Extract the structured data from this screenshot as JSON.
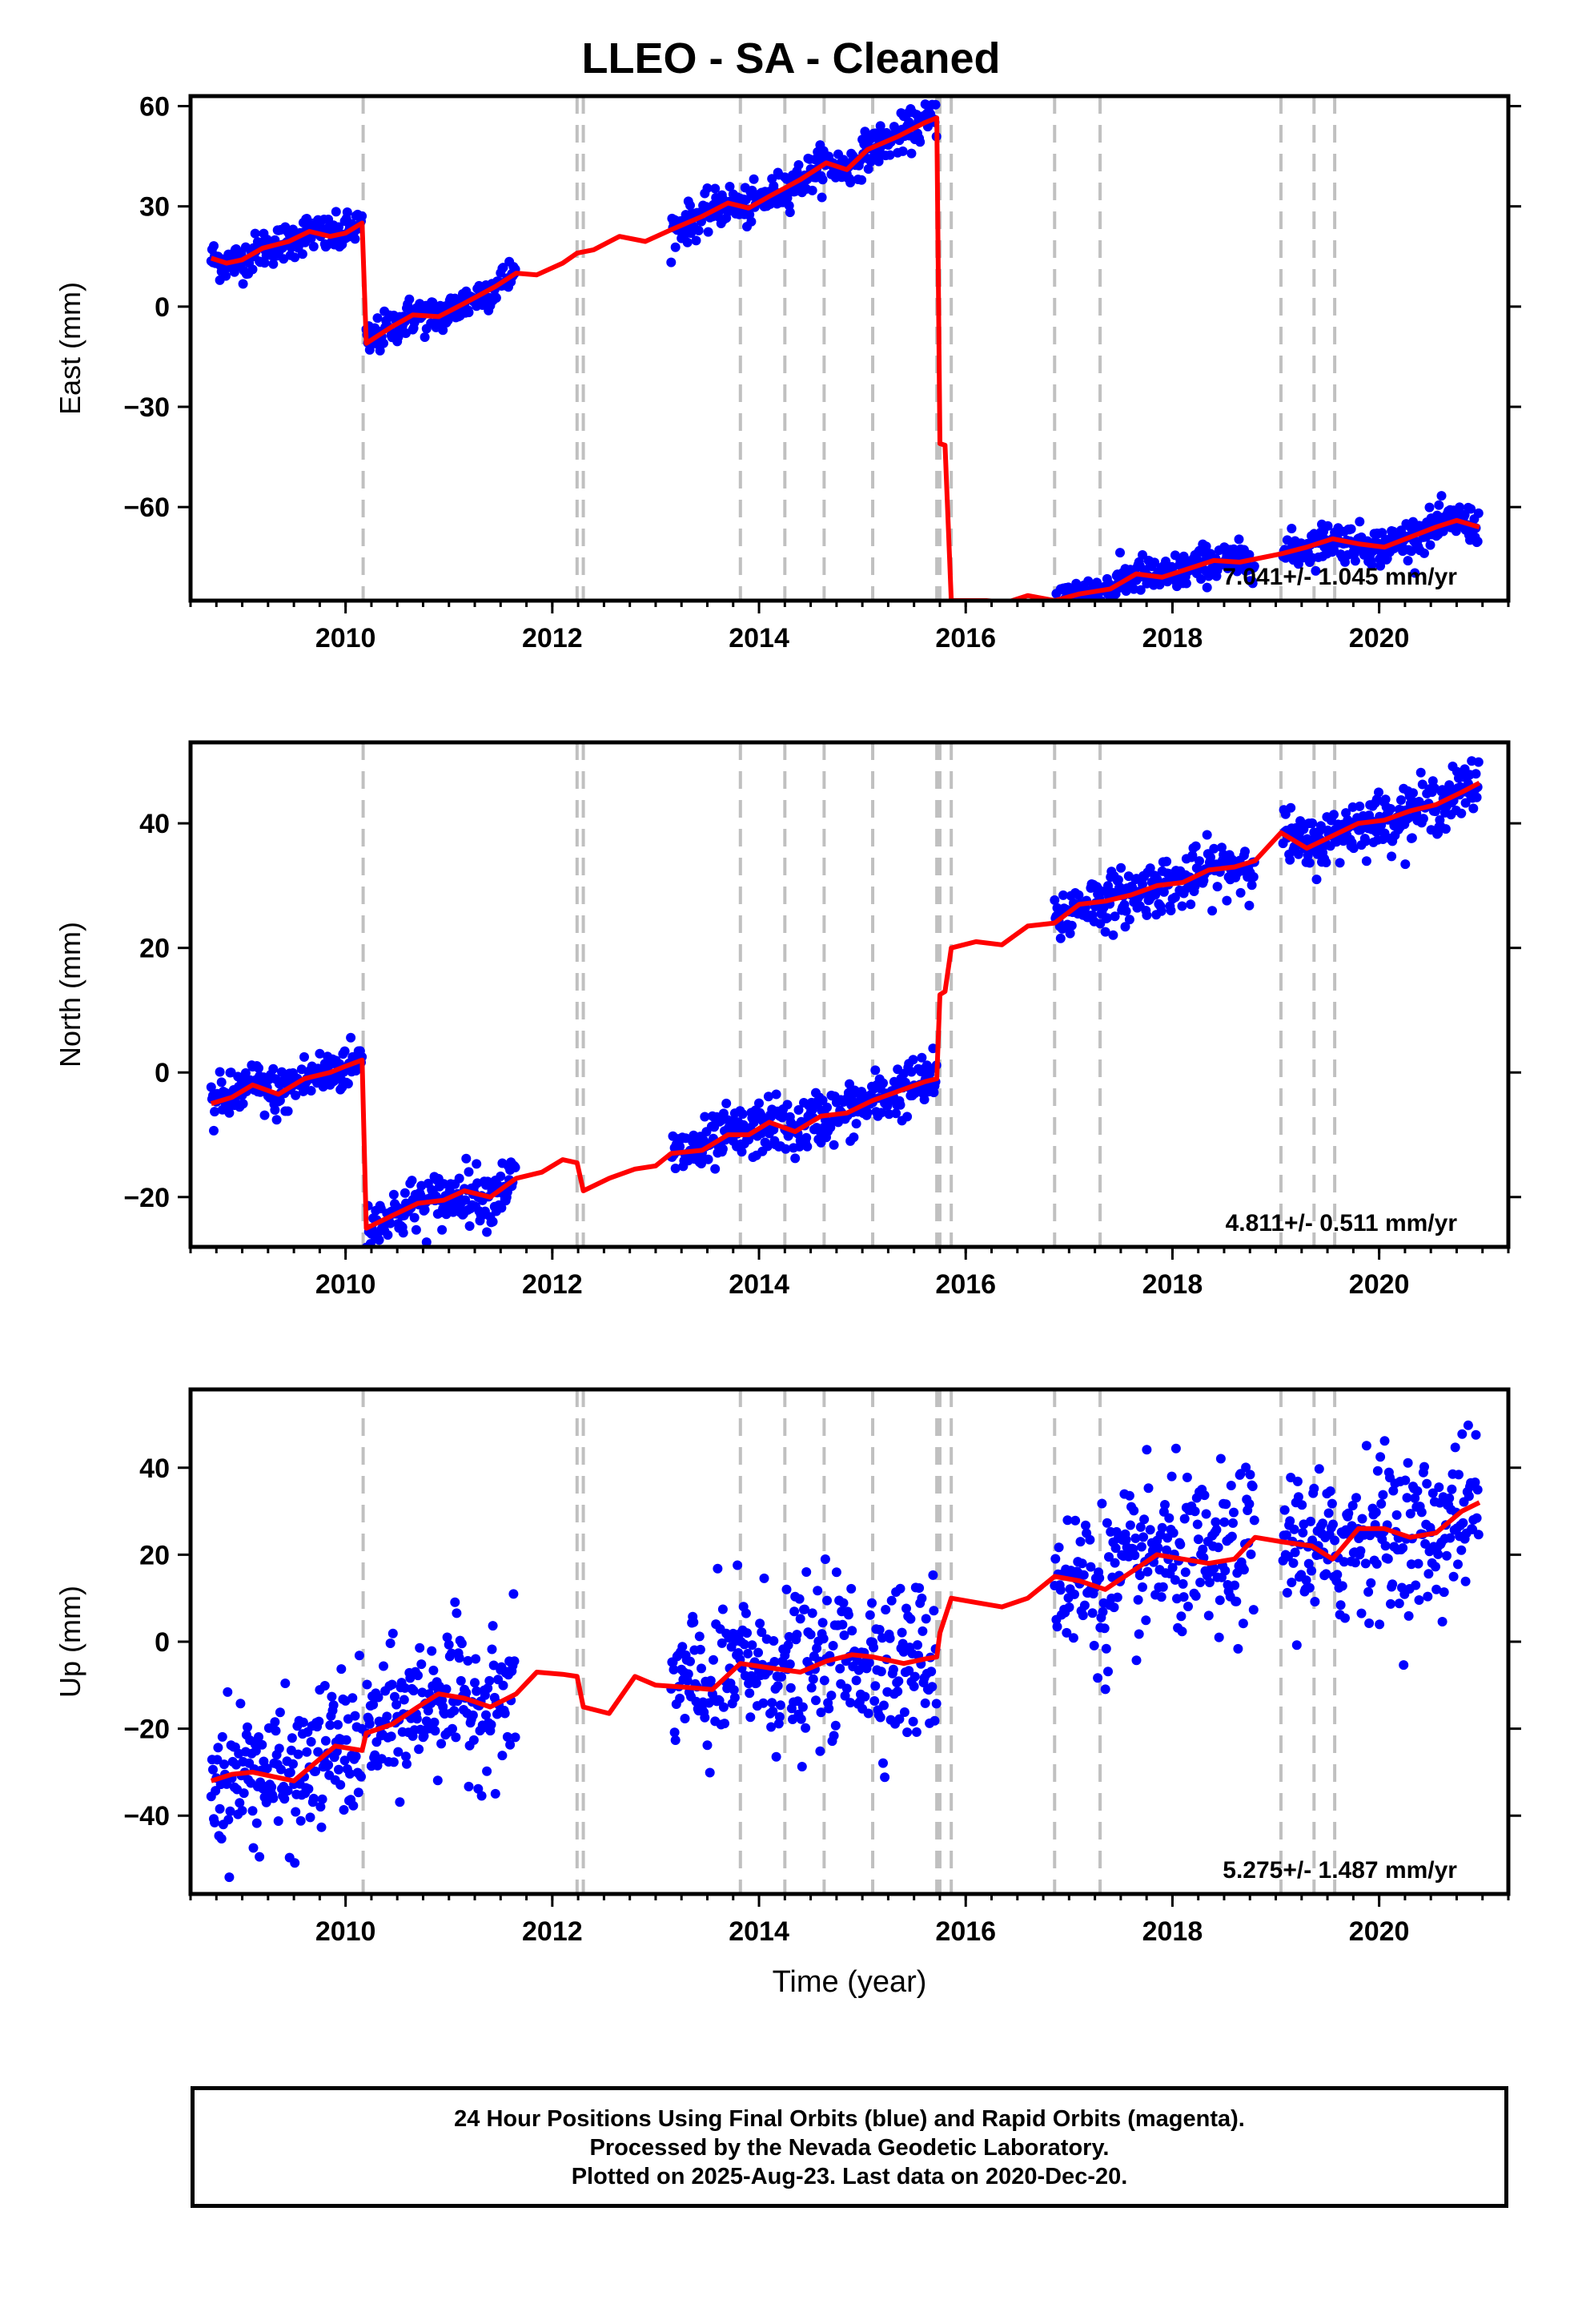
{
  "title": "LLEO  - SA - Cleaned",
  "footer": {
    "line1": "24 Hour Positions Using Final Orbits (blue) and Rapid Orbits (magenta).",
    "line2": "Processed by the Nevada Geodetic Laboratory.",
    "line3": "Plotted on 2025-Aug-23. Last data on 2020-Dec-20."
  },
  "colors": {
    "data_points": "#0000ff",
    "model": "#ff0000",
    "event_lines": "#c0c0c0"
  },
  "chart_data": [
    {
      "type": "scatter",
      "component": "East",
      "ylabel": "East (mm)",
      "xlabel": "",
      "xlim": [
        2008.5,
        2021.25
      ],
      "ylim": [
        -88,
        63
      ],
      "xticks": [
        2010,
        2012,
        2014,
        2016,
        2018,
        2020
      ],
      "yticks": [
        -60,
        -30,
        0,
        30,
        60
      ],
      "velocity_label": "7.041+/- 1.045 mm/yr",
      "events": [
        2010.17,
        2012.24,
        2012.3,
        2013.82,
        2014.25,
        2014.63,
        2015.1,
        2015.72,
        2015.75,
        2015.86,
        2016.86,
        2017.3,
        2019.05,
        2019.37,
        2019.57
      ],
      "segments": [
        {
          "start": 2008.7,
          "end": 2010.16,
          "seg": 0,
          "scatter": 2.8
        },
        {
          "start": 2010.2,
          "end": 2011.65,
          "seg": 1,
          "scatter": 2.8
        },
        {
          "start": 2013.15,
          "end": 2015.72,
          "seg": 2,
          "scatter": 2.8
        },
        {
          "start": 2016.86,
          "end": 2018.8,
          "seg": 3,
          "scatter": 2.8
        },
        {
          "start": 2019.07,
          "end": 2020.97,
          "seg": 4,
          "scatter": 2.8
        }
      ],
      "model": [
        [
          2008.7,
          14.5
        ],
        [
          2008.85,
          13.0
        ],
        [
          2009.0,
          14.0
        ],
        [
          2009.2,
          17.5
        ],
        [
          2009.45,
          19.5
        ],
        [
          2009.65,
          22.5
        ],
        [
          2009.85,
          21.0
        ],
        [
          2010.0,
          22.0
        ],
        [
          2010.16,
          25.0
        ],
        [
          2010.2,
          -11.0
        ],
        [
          2010.45,
          -6.0
        ],
        [
          2010.65,
          -2.5
        ],
        [
          2010.9,
          -3.0
        ],
        [
          2011.15,
          1.0
        ],
        [
          2011.45,
          6.0
        ],
        [
          2011.65,
          10.0
        ],
        [
          2011.85,
          9.5
        ],
        [
          2012.1,
          13.0
        ],
        [
          2012.24,
          16.0
        ],
        [
          2012.4,
          17.0
        ],
        [
          2012.65,
          21.0
        ],
        [
          2012.9,
          19.5
        ],
        [
          2013.15,
          23.0
        ],
        [
          2013.45,
          27.0
        ],
        [
          2013.7,
          31.0
        ],
        [
          2013.9,
          29.5
        ],
        [
          2014.1,
          33.0
        ],
        [
          2014.4,
          38.0
        ],
        [
          2014.65,
          43.0
        ],
        [
          2014.85,
          41.0
        ],
        [
          2015.05,
          47.0
        ],
        [
          2015.35,
          51.0
        ],
        [
          2015.6,
          55.0
        ],
        [
          2015.72,
          56.5
        ],
        [
          2015.75,
          -41.0
        ],
        [
          2015.8,
          -41.5
        ],
        [
          2015.86,
          -88.0
        ],
        [
          2016.2,
          -88.0
        ],
        [
          2016.4,
          -88.5
        ],
        [
          2016.6,
          -86.5
        ],
        [
          2016.86,
          -88.0
        ],
        [
          2017.1,
          -86.0
        ],
        [
          2017.4,
          -84.5
        ],
        [
          2017.65,
          -80.0
        ],
        [
          2017.9,
          -81.0
        ],
        [
          2018.15,
          -78.5
        ],
        [
          2018.4,
          -76.0
        ],
        [
          2018.65,
          -76.5
        ],
        [
          2019.05,
          -74.0
        ],
        [
          2019.3,
          -72.0
        ],
        [
          2019.55,
          -69.5
        ],
        [
          2019.8,
          -71.0
        ],
        [
          2020.05,
          -72.0
        ],
        [
          2020.3,
          -69.0
        ],
        [
          2020.55,
          -66.0
        ],
        [
          2020.75,
          -64.0
        ],
        [
          2020.97,
          -66.0
        ]
      ]
    },
    {
      "type": "scatter",
      "component": "North",
      "ylabel": "North (mm)",
      "xlabel": "",
      "xlim": [
        2008.5,
        2021.25
      ],
      "ylim": [
        -28,
        53
      ],
      "xticks": [
        2010,
        2012,
        2014,
        2016,
        2018,
        2020
      ],
      "yticks": [
        -20,
        0,
        20,
        40
      ],
      "velocity_label": "4.811+/- 0.511 mm/yr",
      "events": [
        2010.17,
        2012.24,
        2012.3,
        2013.82,
        2014.25,
        2014.63,
        2015.1,
        2015.72,
        2015.75,
        2015.86,
        2016.86,
        2017.3,
        2019.05,
        2019.37,
        2019.57
      ],
      "segments": [
        {
          "start": 2008.7,
          "end": 2010.16,
          "seg": 0,
          "scatter": 2.0
        },
        {
          "start": 2010.2,
          "end": 2011.65,
          "seg": 1,
          "scatter": 2.2
        },
        {
          "start": 2013.15,
          "end": 2015.72,
          "seg": 2,
          "scatter": 2.2
        },
        {
          "start": 2016.86,
          "end": 2018.8,
          "seg": 3,
          "scatter": 2.2
        },
        {
          "start": 2019.07,
          "end": 2020.97,
          "seg": 4,
          "scatter": 2.2
        }
      ],
      "model": [
        [
          2008.7,
          -5.0
        ],
        [
          2008.9,
          -4.0
        ],
        [
          2009.1,
          -2.0
        ],
        [
          2009.35,
          -3.5
        ],
        [
          2009.6,
          -1.0
        ],
        [
          2009.85,
          0.0
        ],
        [
          2010.0,
          1.0
        ],
        [
          2010.16,
          2.0
        ],
        [
          2010.2,
          -25.0
        ],
        [
          2010.45,
          -23.0
        ],
        [
          2010.7,
          -21.0
        ],
        [
          2010.95,
          -20.5
        ],
        [
          2011.15,
          -19.0
        ],
        [
          2011.4,
          -20.0
        ],
        [
          2011.65,
          -17.0
        ],
        [
          2011.9,
          -16.0
        ],
        [
          2012.1,
          -14.0
        ],
        [
          2012.24,
          -14.5
        ],
        [
          2012.3,
          -19.0
        ],
        [
          2012.55,
          -17.0
        ],
        [
          2012.8,
          -15.5
        ],
        [
          2013.0,
          -15.0
        ],
        [
          2013.15,
          -13.0
        ],
        [
          2013.45,
          -12.5
        ],
        [
          2013.7,
          -10.0
        ],
        [
          2013.9,
          -10.0
        ],
        [
          2014.1,
          -8.0
        ],
        [
          2014.35,
          -9.5
        ],
        [
          2014.6,
          -7.0
        ],
        [
          2014.85,
          -6.5
        ],
        [
          2015.1,
          -4.5
        ],
        [
          2015.35,
          -3.0
        ],
        [
          2015.6,
          -1.5
        ],
        [
          2015.72,
          -1.0
        ],
        [
          2015.75,
          12.5
        ],
        [
          2015.8,
          13.0
        ],
        [
          2015.86,
          20.0
        ],
        [
          2016.1,
          21.0
        ],
        [
          2016.35,
          20.5
        ],
        [
          2016.6,
          23.5
        ],
        [
          2016.86,
          24.0
        ],
        [
          2017.1,
          27.0
        ],
        [
          2017.35,
          27.5
        ],
        [
          2017.6,
          28.5
        ],
        [
          2017.85,
          30.0
        ],
        [
          2018.1,
          30.5
        ],
        [
          2018.35,
          32.5
        ],
        [
          2018.6,
          33.0
        ],
        [
          2018.8,
          34.0
        ],
        [
          2019.05,
          38.5
        ],
        [
          2019.3,
          36.0
        ],
        [
          2019.55,
          38.0
        ],
        [
          2019.8,
          40.0
        ],
        [
          2020.05,
          40.5
        ],
        [
          2020.3,
          42.0
        ],
        [
          2020.55,
          43.0
        ],
        [
          2020.8,
          45.0
        ],
        [
          2020.97,
          46.5
        ]
      ]
    },
    {
      "type": "scatter",
      "component": "Up",
      "ylabel": "Up (mm)",
      "xlabel": "Time (year)",
      "xlim": [
        2008.5,
        2021.25
      ],
      "ylim": [
        -58,
        58
      ],
      "xticks": [
        2010,
        2012,
        2014,
        2016,
        2018,
        2020
      ],
      "yticks": [
        -40,
        -20,
        0,
        20,
        40
      ],
      "velocity_label": "5.275+/- 1.487 mm/yr",
      "events": [
        2010.17,
        2012.24,
        2012.3,
        2013.82,
        2014.25,
        2014.63,
        2015.1,
        2015.72,
        2015.75,
        2015.86,
        2016.86,
        2017.3,
        2019.05,
        2019.37,
        2019.57
      ],
      "segments": [
        {
          "start": 2008.7,
          "end": 2010.16,
          "seg": 0,
          "scatter": 8.0
        },
        {
          "start": 2010.2,
          "end": 2011.65,
          "seg": 1,
          "scatter": 8.0
        },
        {
          "start": 2013.15,
          "end": 2015.72,
          "seg": 2,
          "scatter": 9.0
        },
        {
          "start": 2016.86,
          "end": 2018.8,
          "seg": 3,
          "scatter": 9.0
        },
        {
          "start": 2019.07,
          "end": 2020.97,
          "seg": 4,
          "scatter": 9.0
        }
      ],
      "model": [
        [
          2008.7,
          -32.0
        ],
        [
          2008.9,
          -30.5
        ],
        [
          2009.1,
          -30.0
        ],
        [
          2009.3,
          -31.0
        ],
        [
          2009.5,
          -32.0
        ],
        [
          2009.7,
          -28.0
        ],
        [
          2009.9,
          -24.0
        ],
        [
          2010.16,
          -25.0
        ],
        [
          2010.2,
          -21.0
        ],
        [
          2010.45,
          -19.0
        ],
        [
          2010.7,
          -15.0
        ],
        [
          2010.9,
          -12.0
        ],
        [
          2011.15,
          -13.0
        ],
        [
          2011.4,
          -15.0
        ],
        [
          2011.65,
          -12.0
        ],
        [
          2011.85,
          -7.0
        ],
        [
          2012.1,
          -7.5
        ],
        [
          2012.24,
          -8.0
        ],
        [
          2012.3,
          -15.0
        ],
        [
          2012.55,
          -16.5
        ],
        [
          2012.8,
          -8.0
        ],
        [
          2013.0,
          -10.0
        ],
        [
          2013.3,
          -10.5
        ],
        [
          2013.55,
          -11.0
        ],
        [
          2013.82,
          -5.0
        ],
        [
          2014.1,
          -6.0
        ],
        [
          2014.4,
          -7.0
        ],
        [
          2014.65,
          -4.5
        ],
        [
          2014.9,
          -3.0
        ],
        [
          2015.1,
          -3.5
        ],
        [
          2015.4,
          -5.0
        ],
        [
          2015.6,
          -4.0
        ],
        [
          2015.72,
          -3.5
        ],
        [
          2015.75,
          2.0
        ],
        [
          2015.86,
          10.0
        ],
        [
          2016.1,
          9.0
        ],
        [
          2016.35,
          8.0
        ],
        [
          2016.6,
          10.0
        ],
        [
          2016.86,
          15.0
        ],
        [
          2017.1,
          14.0
        ],
        [
          2017.35,
          12.0
        ],
        [
          2017.6,
          16.0
        ],
        [
          2017.85,
          20.0
        ],
        [
          2018.1,
          19.0
        ],
        [
          2018.35,
          18.0
        ],
        [
          2018.6,
          19.0
        ],
        [
          2018.8,
          24.0
        ],
        [
          2019.05,
          23.0
        ],
        [
          2019.35,
          22.0
        ],
        [
          2019.55,
          19.0
        ],
        [
          2019.8,
          26.0
        ],
        [
          2020.05,
          26.0
        ],
        [
          2020.3,
          24.0
        ],
        [
          2020.55,
          25.0
        ],
        [
          2020.8,
          30.0
        ],
        [
          2020.97,
          32.0
        ]
      ]
    }
  ]
}
